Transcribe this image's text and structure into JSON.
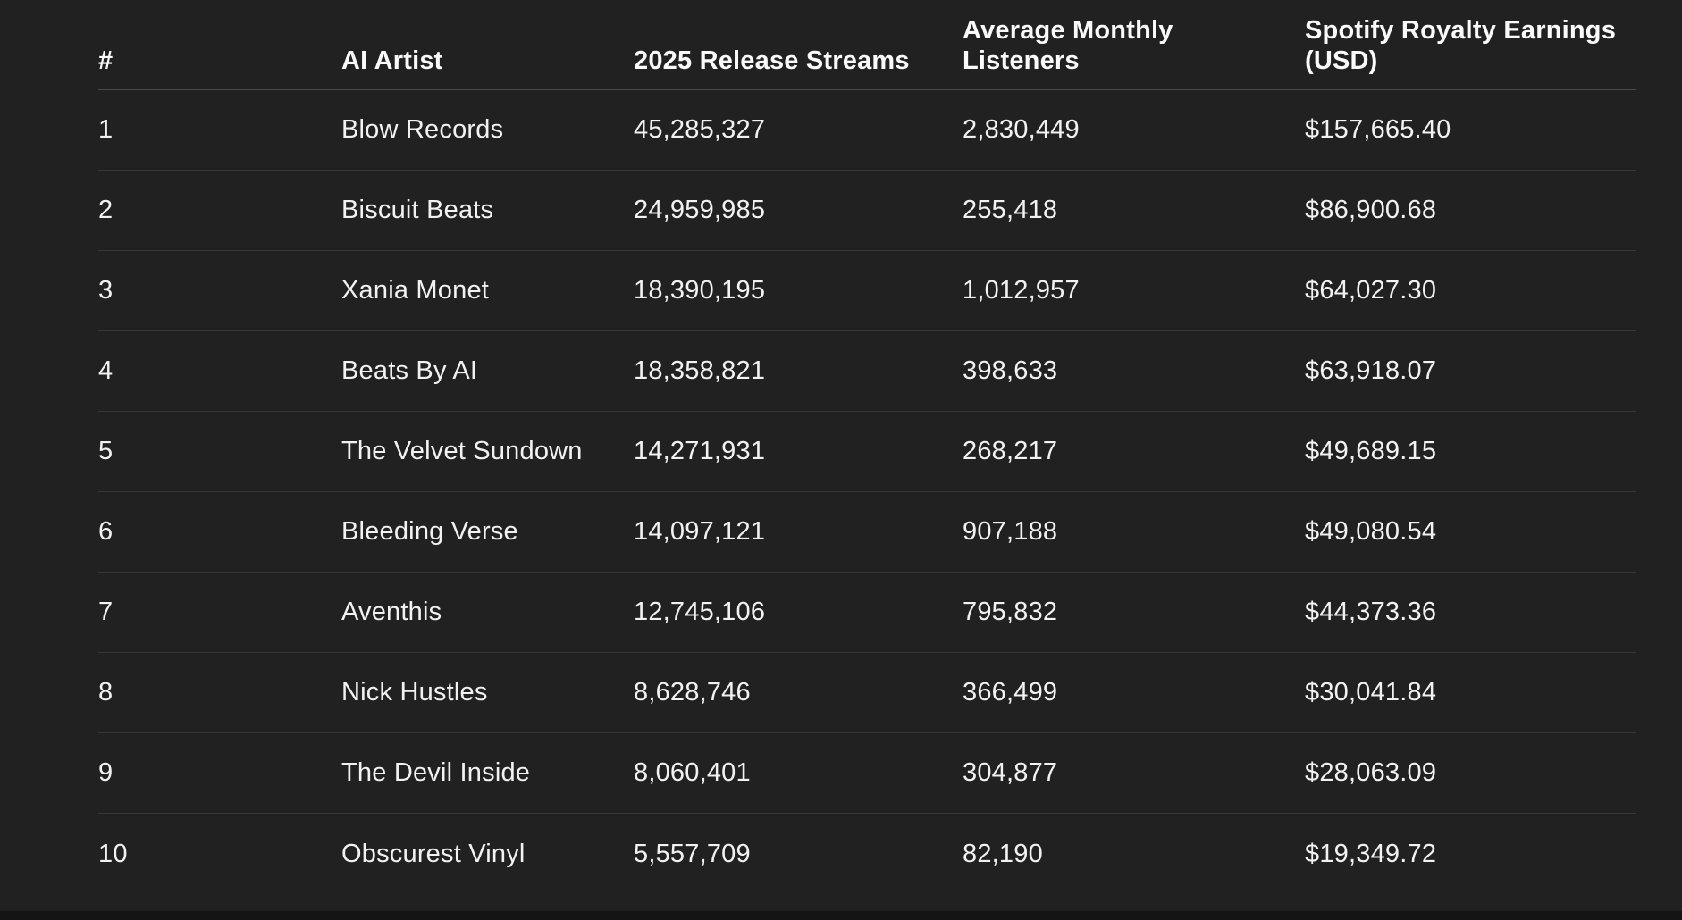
{
  "colors": {
    "background": "#212121",
    "text": "#f2f2f2",
    "header_text": "#fafafa",
    "header_divider": "#4a4a4a",
    "row_divider": "#373737",
    "bottom_strip": "#141414"
  },
  "table": {
    "columns": [
      {
        "label": "#",
        "lines": [
          "#"
        ]
      },
      {
        "label": "AI Artist",
        "lines": [
          "AI Artist"
        ]
      },
      {
        "label": "2025 Release Streams",
        "lines": [
          "2025 Release Streams"
        ]
      },
      {
        "label": "Average Monthly Listeners",
        "lines": [
          "Average Monthly",
          "Listeners"
        ]
      },
      {
        "label": "Spotify Royalty Earnings (USD)",
        "lines": [
          "Spotify Royalty Earnings",
          "(USD)"
        ]
      }
    ],
    "rows": [
      {
        "rank": "1",
        "artist": "Blow Records",
        "streams": "45,285,327",
        "listeners": "2,830,449",
        "earnings": "$157,665.40"
      },
      {
        "rank": "2",
        "artist": "Biscuit Beats",
        "streams": "24,959,985",
        "listeners": "255,418",
        "earnings": "$86,900.68"
      },
      {
        "rank": "3",
        "artist": "Xania Monet",
        "streams": "18,390,195",
        "listeners": "1,012,957",
        "earnings": "$64,027.30"
      },
      {
        "rank": "4",
        "artist": "Beats By AI",
        "streams": "18,358,821",
        "listeners": "398,633",
        "earnings": "$63,918.07"
      },
      {
        "rank": "5",
        "artist": "The Velvet Sundown",
        "streams": "14,271,931",
        "listeners": "268,217",
        "earnings": "$49,689.15"
      },
      {
        "rank": "6",
        "artist": "Bleeding Verse",
        "streams": "14,097,121",
        "listeners": "907,188",
        "earnings": "$49,080.54"
      },
      {
        "rank": "7",
        "artist": "Aventhis",
        "streams": "12,745,106",
        "listeners": "795,832",
        "earnings": "$44,373.36"
      },
      {
        "rank": "8",
        "artist": "Nick Hustles",
        "streams": "8,628,746",
        "listeners": "366,499",
        "earnings": "$30,041.84"
      },
      {
        "rank": "9",
        "artist": "The Devil Inside",
        "streams": "8,060,401",
        "listeners": "304,877",
        "earnings": "$28,063.09"
      },
      {
        "rank": "10",
        "artist": "Obscurest Vinyl",
        "streams": "5,557,709",
        "listeners": "82,190",
        "earnings": "$19,349.72"
      }
    ]
  },
  "chart_data": {
    "type": "table",
    "title": "",
    "columns": [
      "#",
      "AI Artist",
      "2025 Release Streams",
      "Average Monthly Listeners",
      "Spotify Royalty Earnings (USD)"
    ],
    "rows": [
      [
        1,
        "Blow Records",
        45285327,
        2830449,
        157665.4
      ],
      [
        2,
        "Biscuit Beats",
        24959985,
        255418,
        86900.68
      ],
      [
        3,
        "Xania Monet",
        18390195,
        1012957,
        64027.3
      ],
      [
        4,
        "Beats By AI",
        18358821,
        398633,
        63918.07
      ],
      [
        5,
        "The Velvet Sundown",
        14271931,
        268217,
        49689.15
      ],
      [
        6,
        "Bleeding Verse",
        14097121,
        907188,
        49080.54
      ],
      [
        7,
        "Aventhis",
        12745106,
        795832,
        44373.36
      ],
      [
        8,
        "Nick Hustles",
        8628746,
        366499,
        30041.84
      ],
      [
        9,
        "The Devil Inside",
        8060401,
        304877,
        28063.09
      ],
      [
        10,
        "Obscurest Vinyl",
        5557709,
        82190,
        19349.72
      ]
    ]
  }
}
